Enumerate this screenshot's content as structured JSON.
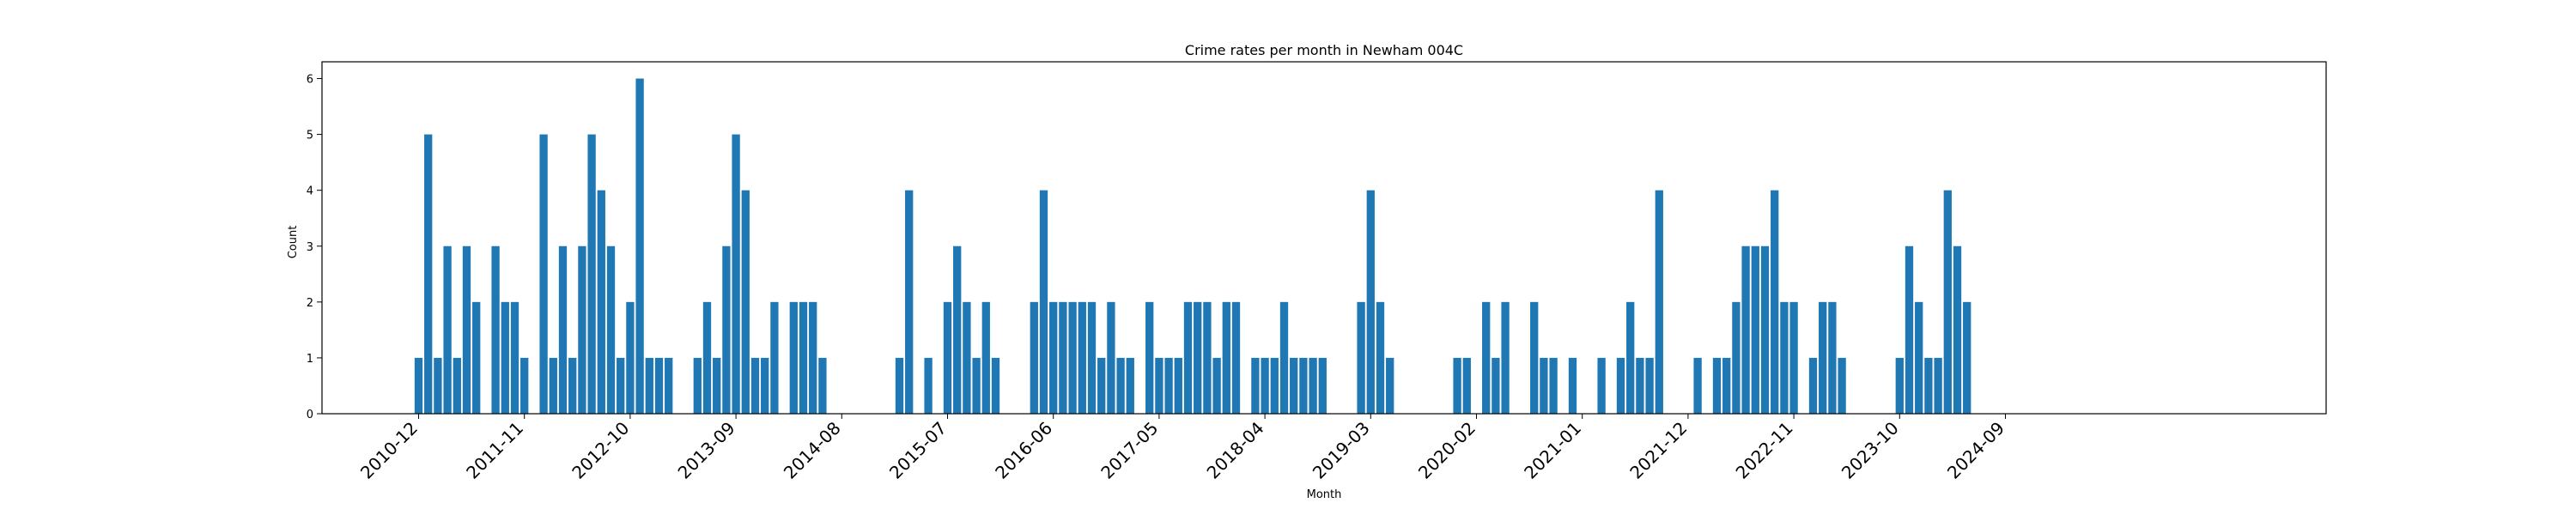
{
  "chart_data": {
    "type": "bar",
    "title": "Crime rates per month in Newham 004C",
    "xlabel": "Month",
    "ylabel": "Count",
    "ylim": [
      0,
      6.3
    ],
    "yticks": [
      0,
      1,
      2,
      3,
      4,
      5,
      6
    ],
    "bar_color": "#1f77b4",
    "grid": false,
    "legend": "none",
    "xtick_labels": [
      "2010-12",
      "2011-11",
      "2012-10",
      "2013-09",
      "2014-08",
      "2015-07",
      "2016-06",
      "2017-05",
      "2018-04",
      "2019-03",
      "2020-02",
      "2021-01",
      "2021-12",
      "2022-11",
      "2023-10",
      "2024-09"
    ],
    "x": [
      "2010-12",
      "2011-01",
      "2011-02",
      "2011-03",
      "2011-04",
      "2011-05",
      "2011-06",
      "2011-08",
      "2011-09",
      "2011-10",
      "2011-11",
      "2012-01",
      "2012-02",
      "2012-03",
      "2012-04",
      "2012-05",
      "2012-06",
      "2012-07",
      "2012-08",
      "2012-09",
      "2012-10",
      "2012-11",
      "2012-12",
      "2013-01",
      "2013-02",
      "2013-05",
      "2013-06",
      "2013-07",
      "2013-08",
      "2013-09",
      "2013-10",
      "2013-11",
      "2013-12",
      "2014-01",
      "2014-03",
      "2014-04",
      "2014-05",
      "2014-06",
      "2015-02",
      "2015-03",
      "2015-05",
      "2015-07",
      "2015-08",
      "2015-09",
      "2015-10",
      "2015-11",
      "2015-12",
      "2016-04",
      "2016-05",
      "2016-06",
      "2016-07",
      "2016-08",
      "2016-09",
      "2016-10",
      "2016-11",
      "2016-12",
      "2017-01",
      "2017-02",
      "2017-04",
      "2017-05",
      "2017-06",
      "2017-07",
      "2017-08",
      "2017-09",
      "2017-10",
      "2017-11",
      "2017-12",
      "2018-01",
      "2018-03",
      "2018-04",
      "2018-05",
      "2018-06",
      "2018-07",
      "2018-08",
      "2018-09",
      "2018-10",
      "2019-02",
      "2019-03",
      "2019-04",
      "2019-05",
      "2019-12",
      "2020-01",
      "2020-03",
      "2020-04",
      "2020-05",
      "2020-08",
      "2020-09",
      "2020-10",
      "2020-12",
      "2021-03",
      "2021-05",
      "2021-06",
      "2021-07",
      "2021-08",
      "2021-09",
      "2022-01",
      "2022-03",
      "2022-04",
      "2022-05",
      "2022-06",
      "2022-07",
      "2022-08",
      "2022-09",
      "2022-10",
      "2022-11",
      "2023-01",
      "2023-02",
      "2023-03",
      "2023-04",
      "2023-10",
      "2023-11",
      "2023-12",
      "2024-01",
      "2024-02",
      "2024-03",
      "2024-04",
      "2024-05"
    ],
    "values": [
      1,
      5,
      1,
      3,
      1,
      3,
      2,
      3,
      2,
      2,
      1,
      5,
      1,
      3,
      1,
      3,
      5,
      4,
      3,
      1,
      2,
      6,
      1,
      1,
      1,
      1,
      2,
      1,
      3,
      5,
      4,
      1,
      1,
      2,
      2,
      2,
      2,
      1,
      1,
      4,
      1,
      2,
      3,
      2,
      1,
      2,
      1,
      2,
      4,
      2,
      2,
      2,
      2,
      2,
      1,
      2,
      1,
      1,
      2,
      1,
      1,
      1,
      2,
      2,
      2,
      1,
      2,
      2,
      1,
      1,
      1,
      2,
      1,
      1,
      1,
      1,
      2,
      4,
      2,
      1,
      1,
      1,
      2,
      1,
      2,
      2,
      1,
      1,
      1,
      1,
      1,
      2,
      1,
      1,
      4,
      1,
      1,
      1,
      2,
      3,
      3,
      3,
      4,
      2,
      2,
      1,
      2,
      2,
      1,
      1,
      3,
      2,
      1,
      1,
      4,
      3,
      2
    ]
  }
}
